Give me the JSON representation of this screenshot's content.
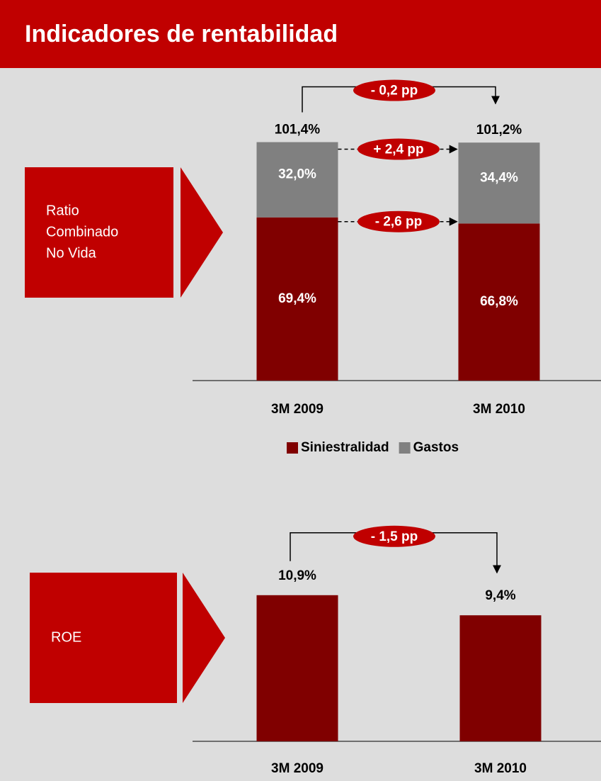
{
  "title": "Indicadores de rentabilidad",
  "chart_data": [
    {
      "type": "stacked_bar",
      "label": [
        "Ratio",
        "Combinado",
        "No Vida"
      ],
      "categories": [
        "3M 2009",
        "3M 2010"
      ],
      "series": [
        {
          "name": "Siniestralidad",
          "color": "#800000",
          "values": [
            69.4,
            66.8
          ],
          "value_labels": [
            "69,4%",
            "66,8%"
          ]
        },
        {
          "name": "Gastos",
          "color": "#808080",
          "values": [
            32.0,
            34.4
          ],
          "value_labels": [
            "32,0%",
            "34,4%"
          ]
        }
      ],
      "total_labels": [
        "101,4%",
        "101,2%"
      ],
      "annotations": [
        "- 0,2 pp",
        "+ 2,4 pp",
        "- 2,6 pp"
      ],
      "ylim": [
        0,
        110
      ]
    },
    {
      "type": "bar",
      "label": [
        "ROE"
      ],
      "categories": [
        "3M 2009",
        "3M 2010"
      ],
      "values": [
        10.9,
        9.4
      ],
      "value_labels": [
        "10,9%",
        "9,4%"
      ],
      "color": "#800000",
      "annotations": [
        "- 1,5 pp"
      ],
      "ylim": [
        0,
        12
      ]
    }
  ]
}
